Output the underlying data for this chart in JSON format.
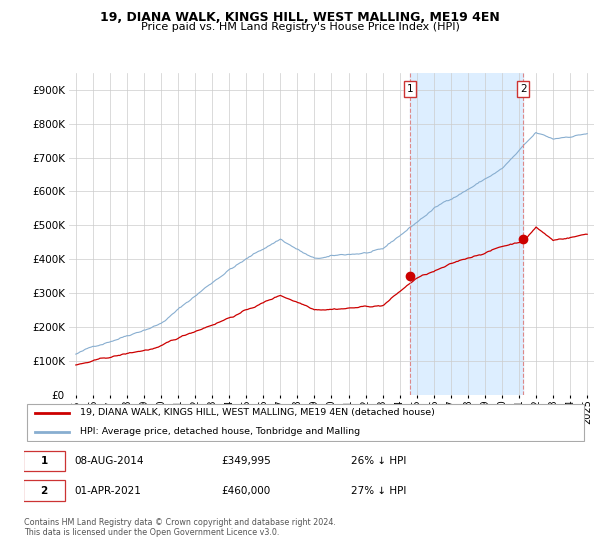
{
  "title": "19, DIANA WALK, KINGS HILL, WEST MALLING, ME19 4EN",
  "subtitle": "Price paid vs. HM Land Registry's House Price Index (HPI)",
  "legend_line1": "19, DIANA WALK, KINGS HILL, WEST MALLING, ME19 4EN (detached house)",
  "legend_line2": "HPI: Average price, detached house, Tonbridge and Malling",
  "footer": "Contains HM Land Registry data © Crown copyright and database right 2024.\nThis data is licensed under the Open Government Licence v3.0.",
  "transaction1": {
    "label": "1",
    "date": "08-AUG-2014",
    "price": "£349,995",
    "note": "26% ↓ HPI"
  },
  "transaction2": {
    "label": "2",
    "date": "01-APR-2021",
    "price": "£460,000",
    "note": "27% ↓ HPI"
  },
  "red_line_color": "#cc0000",
  "blue_line_color": "#88aed0",
  "shade_color": "#ddeeff",
  "point_color": "#cc0000",
  "vline_color": "#dd8888",
  "ylim": [
    0,
    950000
  ],
  "yticks": [
    0,
    100000,
    200000,
    300000,
    400000,
    500000,
    600000,
    700000,
    800000,
    900000
  ],
  "ytick_labels": [
    "£0",
    "£100K",
    "£200K",
    "£300K",
    "£400K",
    "£500K",
    "£600K",
    "£700K",
    "£800K",
    "£900K"
  ],
  "xtick_years": [
    1995,
    1996,
    1997,
    1998,
    1999,
    2000,
    2001,
    2002,
    2003,
    2004,
    2005,
    2006,
    2007,
    2008,
    2009,
    2010,
    2011,
    2012,
    2013,
    2014,
    2015,
    2016,
    2017,
    2018,
    2019,
    2020,
    2021,
    2022,
    2023,
    2024,
    2025
  ],
  "point1_x": 2014.6,
  "point1_y": 349995,
  "point2_x": 2021.25,
  "point2_y": 460000,
  "vline1_x": 2014.6,
  "vline2_x": 2021.25,
  "xlim": [
    1994.6,
    2025.4
  ]
}
